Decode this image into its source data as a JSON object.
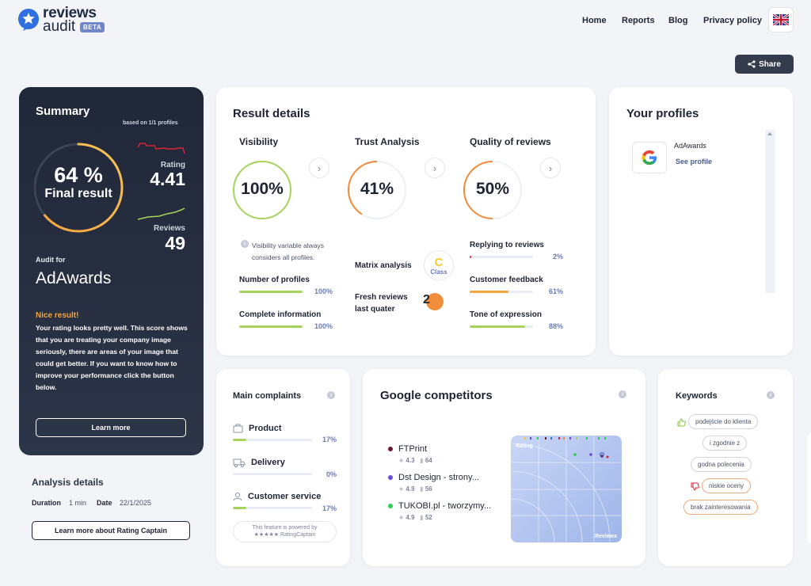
{
  "header": {
    "logo_line1": "reviews",
    "logo_line2": "audit",
    "beta": "BETA",
    "nav": [
      "Home",
      "Reports",
      "Blog",
      "Privacy policy"
    ],
    "share_label": "Share"
  },
  "summary": {
    "title": "Summary",
    "based_on": "based on 1/1 profiles",
    "final_pct": "64 %",
    "final_label": "Final result",
    "final_value": 0.64,
    "rating_label": "Rating",
    "rating_value": "4.41",
    "reviews_label": "Reviews",
    "reviews_value": "49",
    "audit_for_label": "Audit for",
    "company": "AdAwards",
    "nice_title": "Nice result!",
    "nice_text": "Your rating looks pretty well. This score shows that you are treating your company image seriously, there are areas of your image that could get better. If you want to know how to improve your performance click the button below.",
    "learn_more": "Learn more"
  },
  "analysis": {
    "title": "Analysis details",
    "duration_label": "Duration",
    "duration_value": "1 min",
    "date_label": "Date",
    "date_value": "22/1/2025",
    "rating_captain_btn": "Learn more about Rating Captain"
  },
  "result_details": {
    "title": "Result details",
    "visibility": {
      "title": "Visibility",
      "pct": "100%",
      "value": 1.0,
      "note": "Visibility variable always considers all profiles.",
      "items": [
        {
          "label": "Number of profiles",
          "pct": "100%",
          "value": 1.0
        },
        {
          "label": "Complete information",
          "pct": "100%",
          "value": 1.0
        }
      ]
    },
    "trust": {
      "title": "Trust Analysis",
      "pct": "41%",
      "value": 0.41,
      "matrix_label": "Matrix analysis",
      "matrix_class": "C",
      "matrix_class_label": "Class",
      "fresh_label_1": "Fresh reviews",
      "fresh_label_2": "last quater",
      "fresh_value": "2"
    },
    "quality": {
      "title": "Quality of reviews",
      "pct": "50%",
      "value": 0.5,
      "items": [
        {
          "label": "Replying to reviews",
          "pct": "2%",
          "value": 0.02
        },
        {
          "label": "Customer feedback",
          "pct": "61%",
          "value": 0.61
        },
        {
          "label": "Tone of expression",
          "pct": "88%",
          "value": 0.88
        }
      ]
    }
  },
  "profiles": {
    "title": "Your profiles",
    "items": [
      {
        "name": "AdAwards",
        "link": "See profile"
      }
    ]
  },
  "complaints": {
    "title": "Main complaints",
    "items": [
      {
        "label": "Product",
        "pct": "17%",
        "value": 0.17,
        "icon": "product-icon"
      },
      {
        "label": "Delivery",
        "pct": "0%",
        "value": 0.0,
        "icon": "delivery-icon"
      },
      {
        "label": "Customer service",
        "pct": "17%",
        "value": 0.17,
        "icon": "customer-service-icon"
      }
    ],
    "powered_1": "This feature is powered by",
    "powered_2": "RatingCaptain"
  },
  "competitors": {
    "title": "Google competitors",
    "chart_label_rating": "Rating",
    "chart_label_reviews": "Reviews",
    "items": [
      {
        "name": "FTPrint",
        "rating": "4.3",
        "reviews": "64",
        "color": "#6b1a3a"
      },
      {
        "name": "Dst Design - strony...",
        "rating": "4.9",
        "reviews": "56",
        "color": "#6b4ad8"
      },
      {
        "name": "TUKOBI.pl - tworzymy...",
        "rating": "4.9",
        "reviews": "52",
        "color": "#2ecc55"
      }
    ]
  },
  "keywords": {
    "title": "Keywords",
    "items": [
      {
        "text": "podejście do klienta",
        "sentiment": "positive"
      },
      {
        "text": "i zgodnie z",
        "sentiment": "neutral"
      },
      {
        "text": "godna polecenia",
        "sentiment": "neutral"
      },
      {
        "text": "niskie oceny",
        "sentiment": "negative"
      },
      {
        "text": "brak zainteresowania",
        "sentiment": "negative"
      }
    ]
  },
  "colors": {
    "accent_orange": "#f08c3a",
    "accent_green": "#a6d45a",
    "accent_red": "#d6262f",
    "dark": "#1f2738"
  }
}
